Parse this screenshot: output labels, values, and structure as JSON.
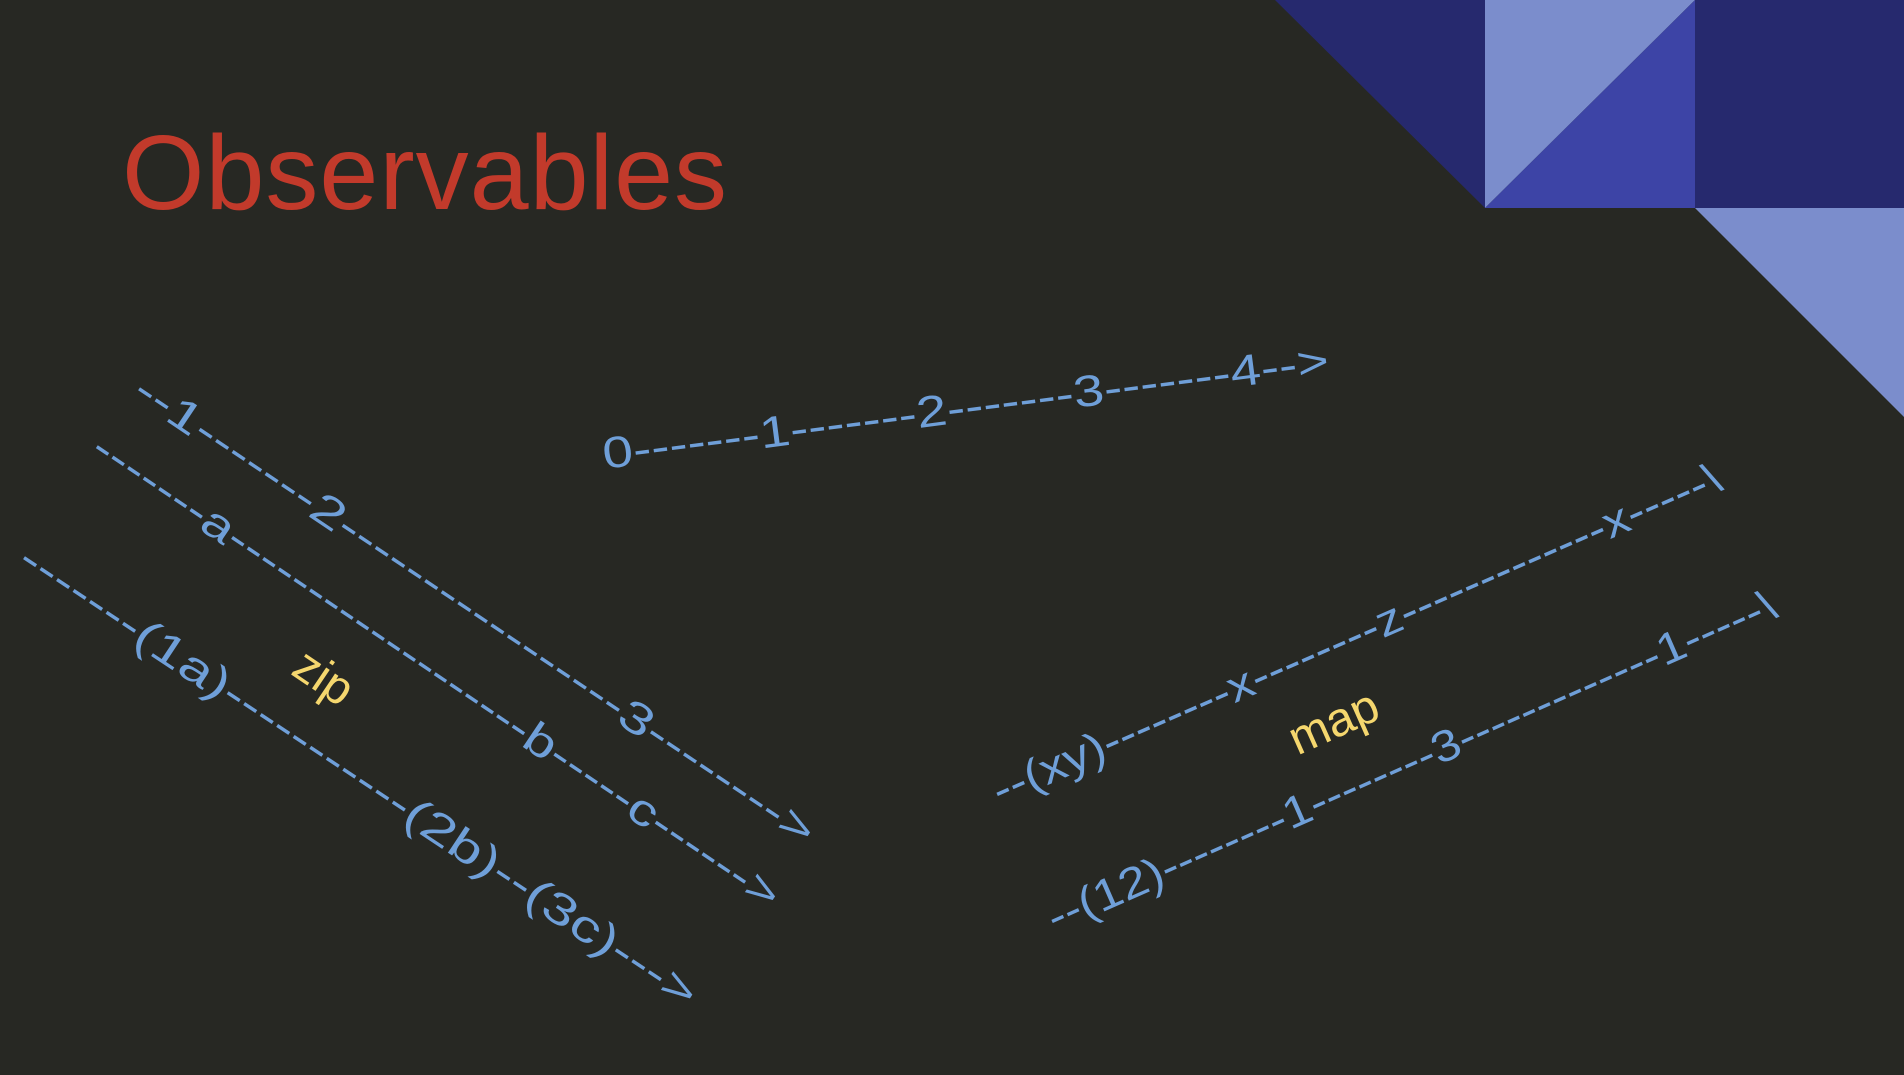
{
  "slide": {
    "title": "Observables",
    "colors": {
      "background": "#272823",
      "title": "#c23a2b",
      "stream": "#6f9fd8",
      "operator": "#f5d76e",
      "decor_dark": "#26296e",
      "decor_light": "#7b8dcc",
      "decor_mid": "#3d44a6"
    }
  },
  "streams": {
    "interval": "0-------1-------2-------3-------4-->",
    "numbers": "--1-------2-----------------3-------->",
    "letters": "-------a-------------------b-----c------>",
    "zipped": "-------(1a)-----------(2b)--(3c)--->",
    "mapped_letters": "--(xy)--------x--------z-------------x-----\\",
    "mapped_numbers": "--(12)--------1--------3-------------1-----\\"
  },
  "operators": {
    "zip": "zip",
    "map": "map"
  }
}
